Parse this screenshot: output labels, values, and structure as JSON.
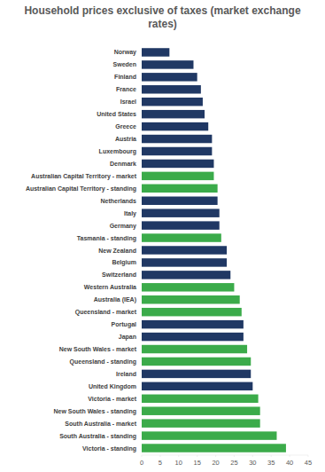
{
  "chart_data": {
    "type": "bar",
    "orientation": "horizontal",
    "title": "Household prices exclusive of taxes (market exchange rates)",
    "categories": [
      "Norway",
      "Sweden",
      "Finland",
      "France",
      "Israel",
      "United States",
      "Greece",
      "Austria",
      "Luxembourg",
      "Denmark",
      "Australian Capital Territory - market",
      "Australian Capital Territory - standing",
      "Netherlands",
      "Italy",
      "Germany",
      "Tasmania - standing",
      "New Zealand",
      "Belgium",
      "Switzerland",
      "Western Australia",
      "Australia (IEA)",
      "Queensland - market",
      "Portugal",
      "Japan",
      "New South Wales - market",
      "Queensland - standing",
      "Ireland",
      "United Kingdom",
      "Victoria - market",
      "New South Wales - standing",
      "South Australia - market",
      "South Australia - standing",
      "Victoria - standing"
    ],
    "values": [
      7.5,
      14,
      15,
      16,
      16.5,
      17,
      18,
      19,
      19,
      19.5,
      19.5,
      20.5,
      20.5,
      21,
      21,
      21.5,
      23,
      23,
      24,
      25,
      26.5,
      27,
      27.5,
      27.5,
      28.5,
      29.5,
      29.5,
      30,
      31.5,
      32,
      32,
      36.5,
      39
    ],
    "colors": [
      "#203864",
      "#203864",
      "#203864",
      "#203864",
      "#203864",
      "#203864",
      "#203864",
      "#203864",
      "#203864",
      "#203864",
      "#3bab4a",
      "#3bab4a",
      "#203864",
      "#203864",
      "#203864",
      "#3bab4a",
      "#203864",
      "#203864",
      "#203864",
      "#3bab4a",
      "#3bab4a",
      "#3bab4a",
      "#203864",
      "#203864",
      "#3bab4a",
      "#3bab4a",
      "#203864",
      "#203864",
      "#3bab4a",
      "#3bab4a",
      "#3bab4a",
      "#3bab4a",
      "#3bab4a"
    ],
    "xlim": [
      0,
      45
    ],
    "xticks": [
      0,
      5,
      10,
      15,
      20,
      25,
      30,
      35,
      40,
      45
    ],
    "grid": false
  }
}
